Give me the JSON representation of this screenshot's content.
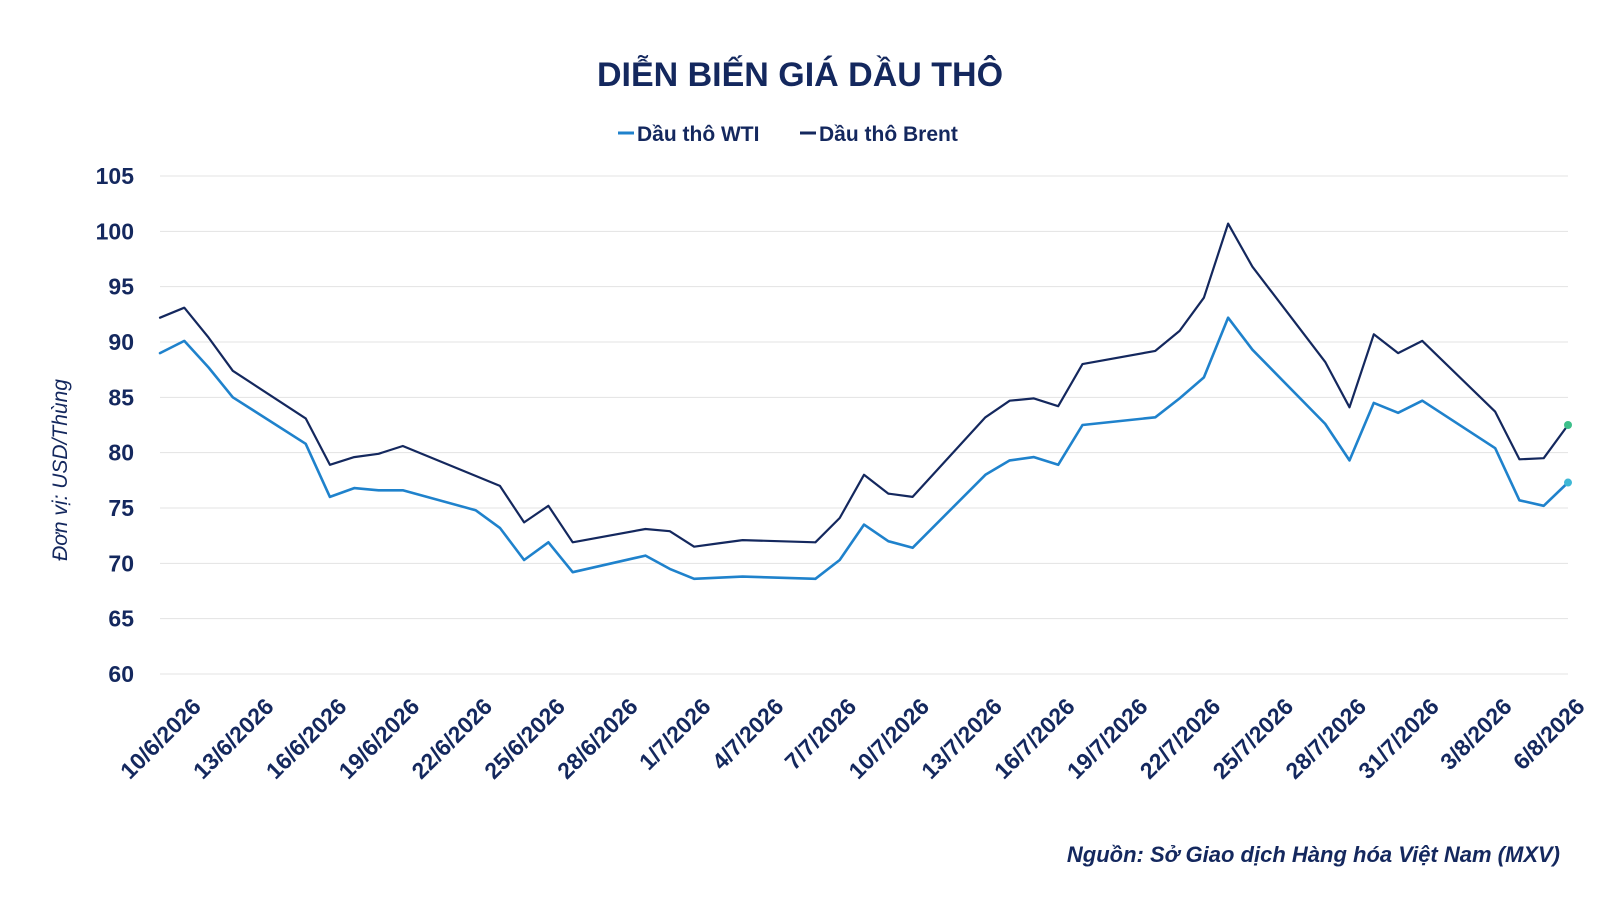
{
  "chart_data": {
    "type": "line",
    "title": "DIỄN BIẾN GIÁ DẦU THÔ",
    "ylabel": "Đơn vị: USD/Thùng",
    "xlabel": "",
    "ylim": [
      60,
      105
    ],
    "yticks": [
      60,
      65,
      70,
      75,
      80,
      85,
      90,
      95,
      100,
      105
    ],
    "legend_position": "top-center",
    "grid": true,
    "source": "Nguồn: Sở Giao dịch Hàng hóa Việt Nam (MXV)",
    "x_tick_labels": [
      "10/6/2026",
      "13/6/2026",
      "16/6/2026",
      "19/6/2026",
      "22/6/2026",
      "25/6/2026",
      "28/6/2026",
      "1/7/2026",
      "4/7/2026",
      "7/7/2026",
      "10/7/2026",
      "13/7/2026",
      "16/7/2026",
      "19/7/2026",
      "22/7/2026",
      "25/7/2026",
      "28/7/2026",
      "31/7/2026",
      "3/8/2026",
      "6/8/2026"
    ],
    "x": [
      "9/6/2026",
      "10/6/2026",
      "11/6/2026",
      "12/6/2026",
      "15/6/2026",
      "16/6/2026",
      "17/6/2026",
      "18/6/2026",
      "19/6/2026",
      "22/6/2026",
      "23/6/2026",
      "24/6/2026",
      "25/6/2026",
      "26/6/2026",
      "29/6/2026",
      "30/6/2026",
      "1/7/2026",
      "2/7/2026",
      "3/7/2026",
      "6/7/2026",
      "7/7/2026",
      "8/7/2026",
      "9/7/2026",
      "10/7/2026",
      "13/7/2026",
      "14/7/2026",
      "15/7/2026",
      "16/7/2026",
      "17/7/2026",
      "20/7/2026",
      "21/7/2026",
      "22/7/2026",
      "23/7/2026",
      "24/7/2026",
      "27/7/2026",
      "28/7/2026",
      "29/7/2026",
      "30/7/2026",
      "31/7/2026",
      "3/8/2026",
      "4/8/2026",
      "5/8/2026",
      "6/8/2026"
    ],
    "series": [
      {
        "name": "Dầu thô WTI",
        "color": "#1f82cc",
        "values": [
          89.0,
          90.1,
          87.7,
          85.0,
          80.8,
          76.0,
          76.8,
          76.6,
          76.6,
          74.8,
          73.2,
          70.3,
          71.9,
          69.2,
          70.7,
          69.5,
          68.6,
          68.7,
          68.8,
          68.6,
          70.3,
          73.5,
          72.0,
          71.4,
          78.0,
          79.3,
          79.6,
          78.9,
          82.5,
          83.2,
          84.9,
          86.8,
          92.2,
          89.3,
          82.6,
          79.3,
          84.5,
          83.6,
          84.7,
          80.4,
          75.7,
          75.2,
          77.3
        ],
        "end_marker_color": "#3fb8d6"
      },
      {
        "name": "Dầu thô Brent",
        "color": "#14285e",
        "values": [
          92.2,
          93.1,
          90.4,
          87.4,
          83.1,
          78.9,
          79.6,
          79.9,
          80.6,
          77.9,
          77.0,
          73.7,
          75.2,
          71.9,
          73.1,
          72.9,
          71.5,
          71.8,
          72.1,
          71.9,
          74.1,
          78.0,
          76.3,
          76.0,
          83.2,
          84.7,
          84.9,
          84.2,
          88.0,
          89.2,
          91.0,
          94.0,
          100.7,
          96.8,
          88.2,
          84.1,
          90.7,
          89.0,
          90.1,
          83.7,
          79.4,
          79.5,
          82.5
        ],
        "end_marker_color": "#3dbf8a"
      }
    ]
  }
}
